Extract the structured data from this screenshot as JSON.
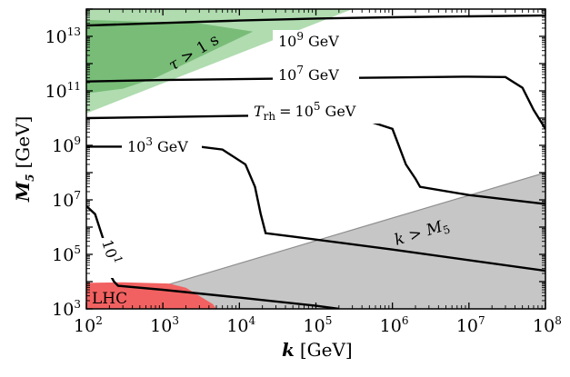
{
  "chart_data": {
    "type": "line",
    "xlabel": {
      "symbol": "k",
      "unit": "[GeV]"
    },
    "ylabel": {
      "symbol": "M",
      "subscript": "5",
      "unit": "[GeV]"
    },
    "xscale": "log",
    "yscale": "log",
    "xlim": [
      100,
      100000000
    ],
    "ylim": [
      1000,
      100000000000000
    ],
    "xticks": [
      {
        "base": "10",
        "exp": "2",
        "value": 100
      },
      {
        "base": "10",
        "exp": "3",
        "value": 1000
      },
      {
        "base": "10",
        "exp": "4",
        "value": 10000
      },
      {
        "base": "10",
        "exp": "5",
        "value": 100000
      },
      {
        "base": "10",
        "exp": "6",
        "value": 1000000
      },
      {
        "base": "10",
        "exp": "7",
        "value": 10000000
      },
      {
        "base": "10",
        "exp": "8",
        "value": 100000000
      }
    ],
    "yticks": [
      {
        "base": "10",
        "exp": "3",
        "value": 1000
      },
      {
        "base": "10",
        "exp": "5",
        "value": 100000
      },
      {
        "base": "10",
        "exp": "7",
        "value": 10000000
      },
      {
        "base": "10",
        "exp": "9",
        "value": 1000000000
      },
      {
        "base": "10",
        "exp": "11",
        "value": 100000000000
      },
      {
        "base": "10",
        "exp": "13",
        "value": 10000000000000
      }
    ],
    "regions": [
      {
        "name": "tau-gt-1s",
        "label": "τ > 1 s",
        "color": "#6fbf6f",
        "opacity": 0.55,
        "polygon": [
          [
            100,
            15000000000.0
          ],
          [
            100,
            100000000000000.0
          ],
          [
            300000.0,
            100000000000000.0
          ]
        ]
      },
      {
        "name": "tau-inner",
        "label": "",
        "color": "#4aa24a",
        "opacity": 0.55,
        "polygon": [
          [
            100,
            80000000000.0
          ],
          [
            100,
            40000000000000.0
          ],
          [
            3000.0,
            30000000000000.0
          ],
          [
            15000.0,
            15000000000000.0
          ],
          [
            800,
            300000000000.0
          ],
          [
            300,
            120000000000.0
          ]
        ]
      },
      {
        "name": "k-gt-M5",
        "label": "k > M5",
        "color": "#b3b3b3",
        "opacity": 0.75,
        "polygon": [
          [
            100,
            1000
          ],
          [
            100000000.0,
            100000000.0
          ],
          [
            100000000.0,
            1000
          ]
        ]
      },
      {
        "name": "lhc",
        "label": "LHC",
        "color": "#f26161",
        "opacity": 1,
        "polygon": [
          [
            100,
            1000
          ],
          [
            100,
            9000
          ],
          [
            300,
            9500
          ],
          [
            1200,
            8500
          ],
          [
            2000,
            6000
          ],
          [
            3000,
            3000
          ],
          [
            4500,
            1500
          ],
          [
            5000,
            1000
          ]
        ]
      }
    ],
    "series": [
      {
        "name": "Trh-1e9",
        "label": {
          "base": "10",
          "exp": "9",
          "unit": "GeV"
        },
        "x": [
          100,
          1000,
          10000.0,
          100000.0,
          1000000.0,
          10000000.0,
          100000000.0
        ],
        "y": [
          25000000000000.0,
          31000000000000.0,
          38000000000000.0,
          45000000000000.0,
          50000000000000.0,
          54000000000000.0,
          58000000000000.0
        ]
      },
      {
        "name": "Trh-1e7",
        "label": {
          "base": "10",
          "exp": "7",
          "unit": "GeV"
        },
        "x": [
          100,
          1000.0,
          10000.0,
          100000.0,
          1000000.0,
          10000000.0,
          30000000.0,
          50000000.0,
          70000000.0,
          100000000.0
        ],
        "y": [
          220000000000.0,
          250000000000.0,
          270000000000.0,
          290000000000.0,
          310000000000.0,
          330000000000.0,
          320000000000.0,
          130000000000.0,
          20000000000.0,
          4000000000.0
        ]
      },
      {
        "name": "Trh-1e5",
        "label": {
          "base": "10",
          "exp": "5",
          "unit": "GeV",
          "prefix": "T",
          "prefix_sub": "rh"
        },
        "x": [
          100,
          1000.0,
          10000.0,
          100000.0,
          300000.0,
          1000000.0,
          1500000.0,
          2000000.0,
          2300000.0,
          10000000.0,
          100000000.0
        ],
        "y": [
          10000000000.0,
          11000000000.0,
          12000000000.0,
          13000000000.0,
          12000000000.0,
          4000000000.0,
          200000000.0,
          60000000.0,
          30000000.0,
          15000000.0,
          7000000.0
        ]
      },
      {
        "name": "Trh-1e3",
        "label": {
          "base": "10",
          "exp": "3",
          "unit": "GeV"
        },
        "x": [
          100,
          150,
          3000,
          6000,
          12000.0,
          16000.0,
          19000.0,
          22000.0,
          50000.0,
          1000000.0,
          100000000.0
        ],
        "y": [
          900000000.0,
          900000000.0,
          900000000.0,
          700000000.0,
          200000000.0,
          30000000.0,
          3000000.0,
          600000.0,
          450000.0,
          150000.0,
          25000.0
        ]
      },
      {
        "name": "Trh-1e1",
        "label": {
          "base": "10",
          "exp": "1",
          "unit": ""
        },
        "x": [
          100,
          130,
          170,
          200,
          230,
          260,
          1000.0,
          10000.0,
          100000.0,
          200000.0
        ],
        "y": [
          6000000.0,
          3000000.0,
          300000.0,
          20000.0,
          10000.0,
          7000.0,
          5000.0,
          2600.0,
          1300.0,
          1000.0
        ]
      }
    ]
  }
}
